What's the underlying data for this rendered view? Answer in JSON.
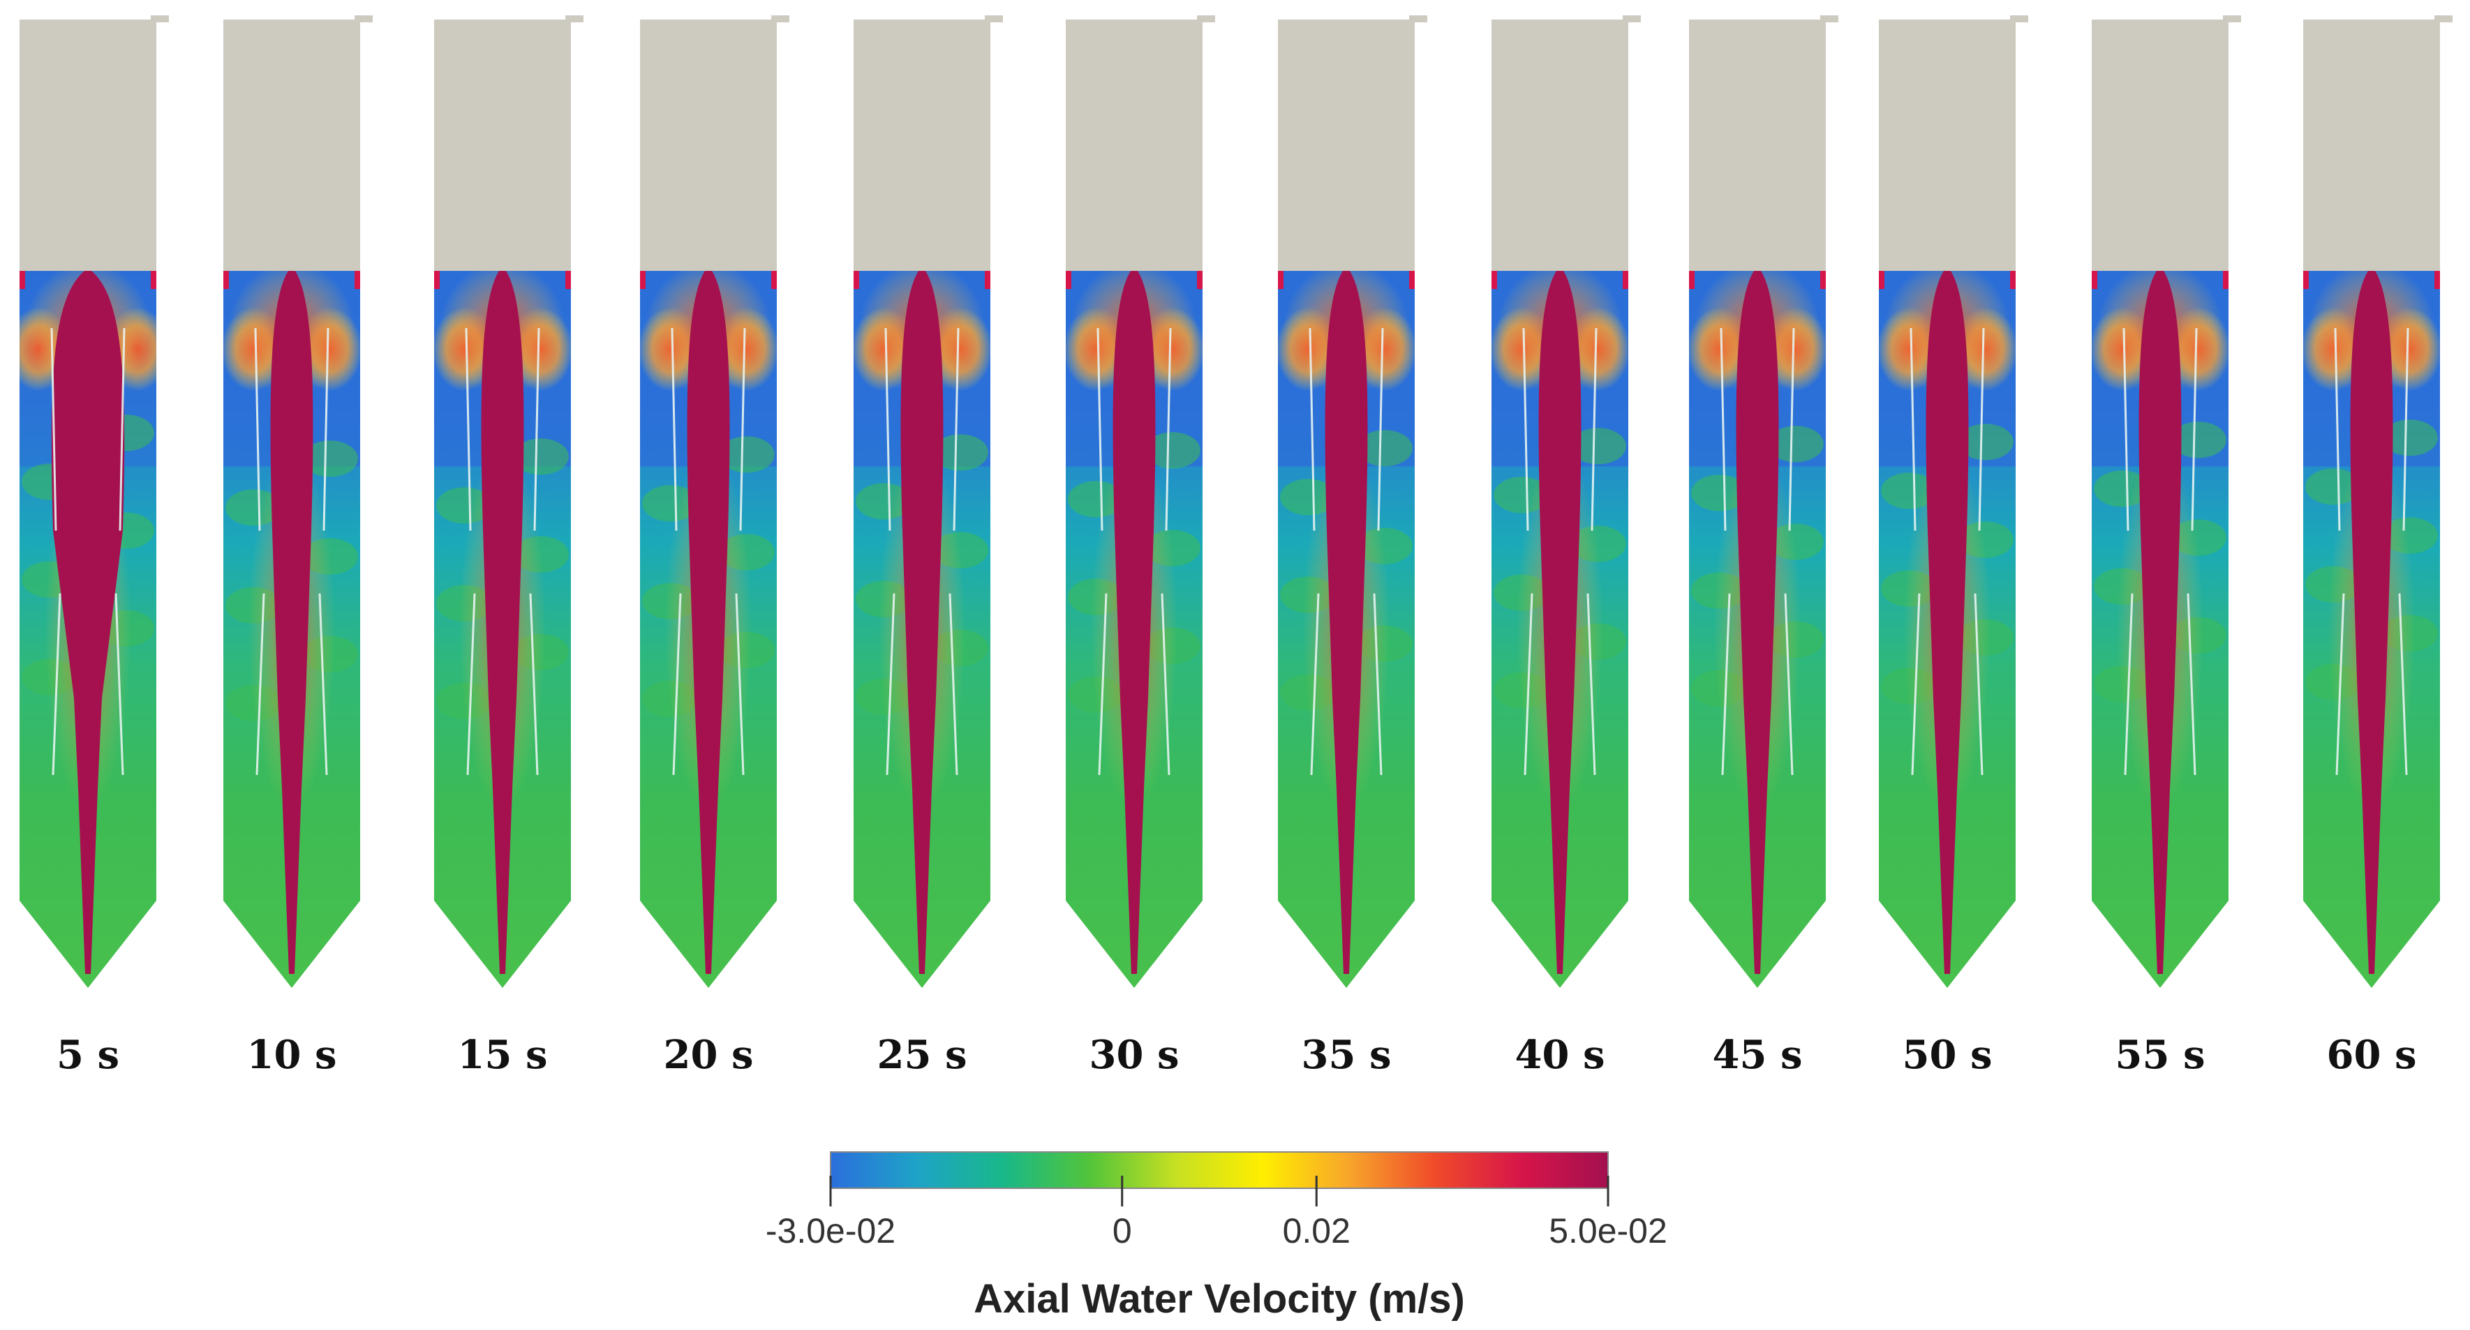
{
  "figure": {
    "frames": [
      {
        "time": "5 s"
      },
      {
        "time": "10 s"
      },
      {
        "time": "15 s"
      },
      {
        "time": "20 s"
      },
      {
        "time": "25 s"
      },
      {
        "time": "30 s"
      },
      {
        "time": "35 s"
      },
      {
        "time": "40 s"
      },
      {
        "time": "45 s"
      },
      {
        "time": "50 s"
      },
      {
        "time": "55 s"
      },
      {
        "time": "60 s"
      }
    ]
  },
  "colorbar": {
    "title": "Axial Water Velocity (m/s)",
    "min": -0.03,
    "max": 0.05,
    "ticks": [
      {
        "value": -0.03,
        "label": "-3.0e-02"
      },
      {
        "value": 0,
        "label": "0"
      },
      {
        "value": 0.02,
        "label": "0.02"
      },
      {
        "value": 0.05,
        "label": "5.0e-02"
      }
    ],
    "colors": [
      "#2b6fdc",
      "#1ea3c7",
      "#19b889",
      "#52c43a",
      "#c6e022",
      "#ffee00",
      "#f7a52b",
      "#f04a2a",
      "#d6154a",
      "#a3104f"
    ]
  },
  "palette": {
    "headspace": "#cdcac0",
    "field_blue": "#2c6ed8",
    "field_teal": "#1ba9b8",
    "field_green": "#3dbb54",
    "field_orange": "#f19a3b",
    "jet": "#a5114e"
  }
}
